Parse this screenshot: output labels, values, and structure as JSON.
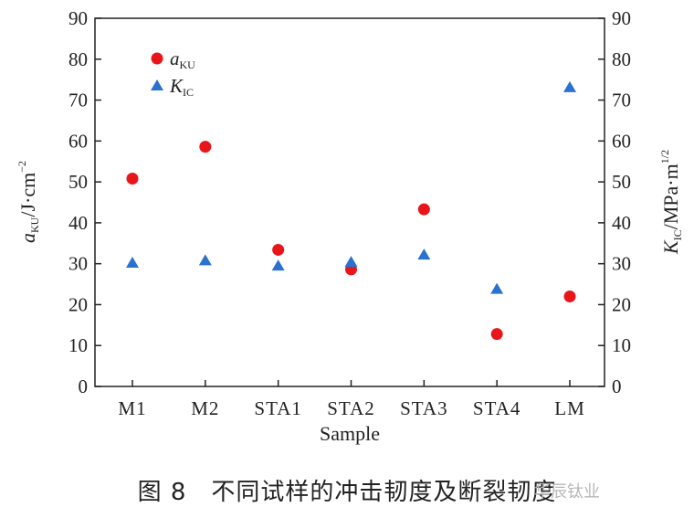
{
  "chart_data": {
    "type": "scatter",
    "categories": [
      "M1",
      "M2",
      "STA1",
      "STA2",
      "STA3",
      "STA4",
      "LM"
    ],
    "series": [
      {
        "name": "aKU",
        "axis": "left",
        "color": "#e8161b",
        "marker": "circle",
        "values": [
          50.8,
          58.6,
          33.4,
          28.6,
          43.3,
          12.8,
          22.0
        ]
      },
      {
        "name": "KIC",
        "axis": "right",
        "color": "#2a72d0",
        "marker": "triangle",
        "values": [
          30.1,
          30.7,
          29.4,
          30.3,
          32.1,
          23.7,
          73.0
        ]
      }
    ],
    "ylim_left": [
      0,
      90
    ],
    "ylim_right": [
      0,
      90
    ],
    "yticks": [
      0,
      10,
      20,
      30,
      40,
      50,
      60,
      70,
      80,
      90
    ],
    "xlabel": "Sample",
    "ylabel_left": {
      "main": "a",
      "sub": "KU",
      "unit": "/J·cm",
      "sup": "−2"
    },
    "ylabel_right": {
      "main": "K",
      "sub": "IC",
      "unit": "/MPa·m",
      "sup": "1/2"
    },
    "legend": [
      {
        "main": "a",
        "sub": "KU"
      },
      {
        "main": "K",
        "sub": "IC"
      }
    ],
    "legend_position": "top-left",
    "grid": false
  },
  "caption": "图 8　不同试样的冲击韧度及断裂韧度",
  "watermark": "华辰钛业"
}
